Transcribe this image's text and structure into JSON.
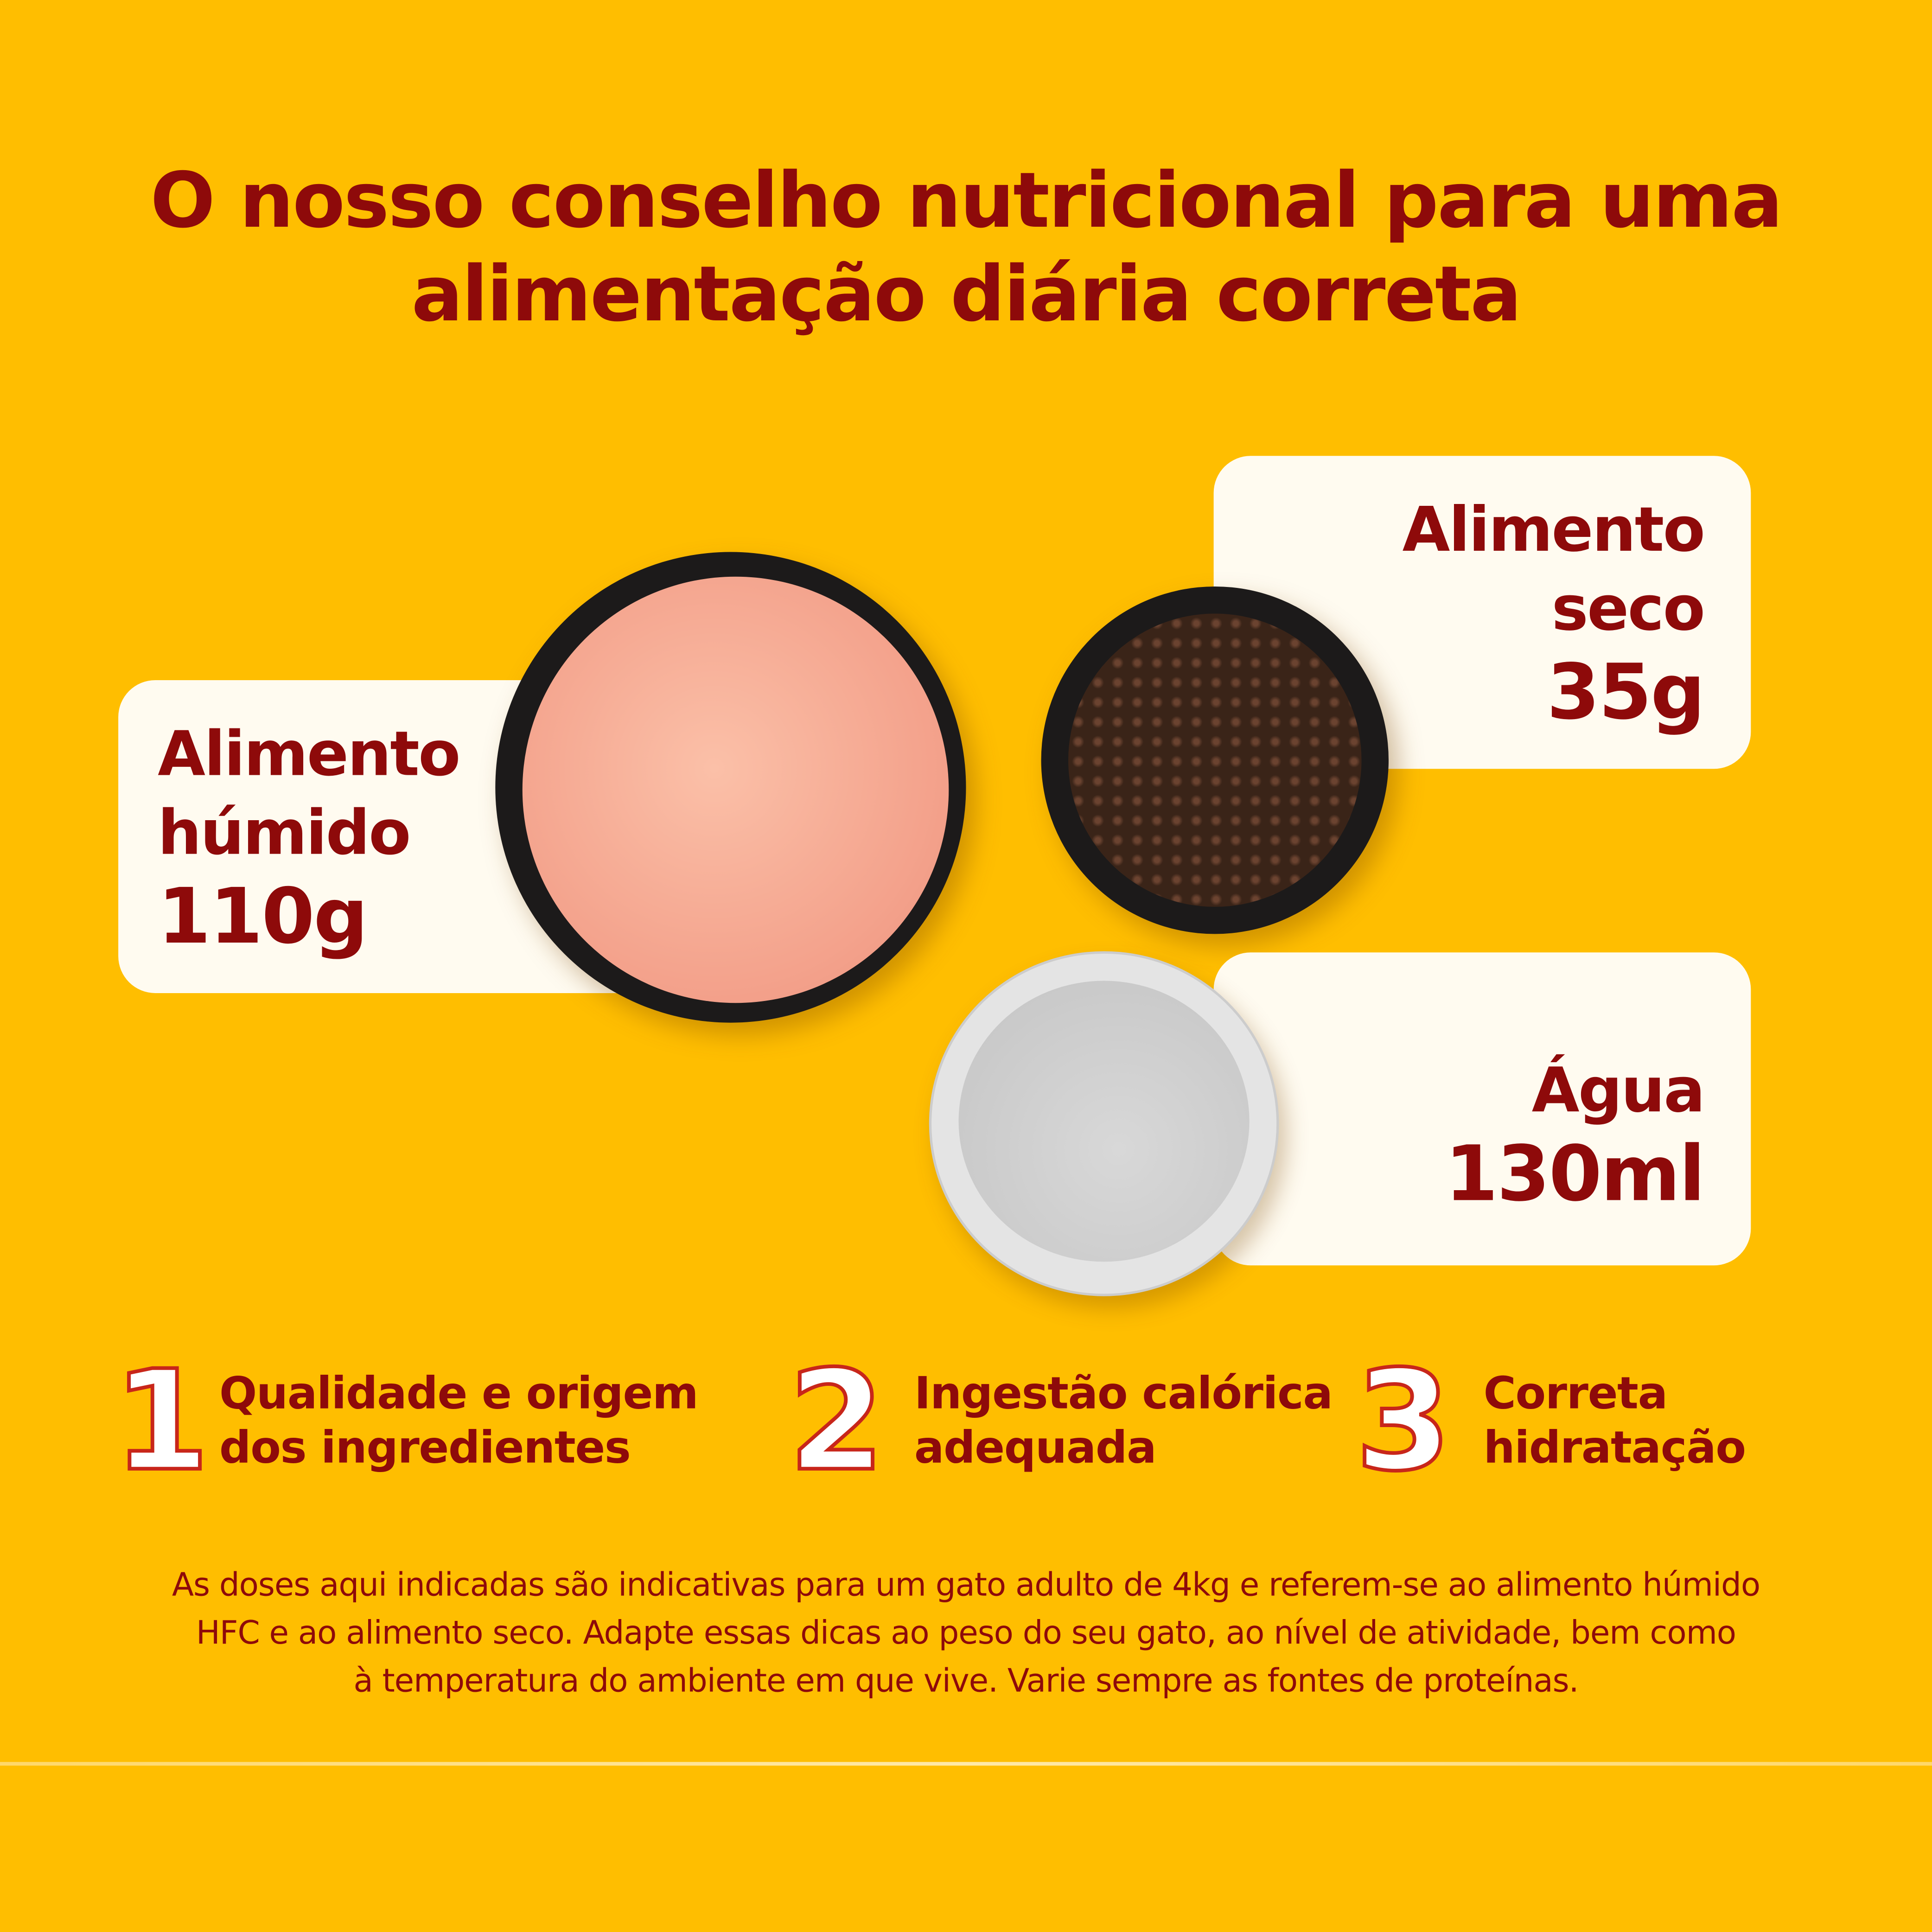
{
  "title": {
    "line1": "O  nosso conselho nutricional para uma",
    "line2": "alimentação diária correta"
  },
  "wet": {
    "label1": "Alimento",
    "label2": "húmido",
    "amount": "110g"
  },
  "dry": {
    "label1": "Alimento",
    "label2": "seco",
    "amount": "35g"
  },
  "water": {
    "label": "Água",
    "amount": "130ml"
  },
  "points": [
    {
      "number": "1",
      "line1": "Qualidade e origem",
      "line2": "dos ingredientes"
    },
    {
      "number": "2",
      "line1": "Ingestão calórica",
      "line2": "adequada"
    },
    {
      "number": "3",
      "line1": "Correta",
      "line2": "hidratação"
    }
  ],
  "note": {
    "line1": "As doses aqui indicadas são indicativas para um gato adulto de 4kg e referem-se ao alimento húmido",
    "line2": "HFC e ao alimento seco. Adapte essas dicas ao peso do seu gato,  ao nível de atividade, bem como",
    "line3": "à temperatura do ambiente em que vive. Varie sempre as fontes de proteínas."
  },
  "colors": {
    "background": "#FFBE00",
    "text": "#8E0A0A",
    "card": "#FFFBF0"
  }
}
